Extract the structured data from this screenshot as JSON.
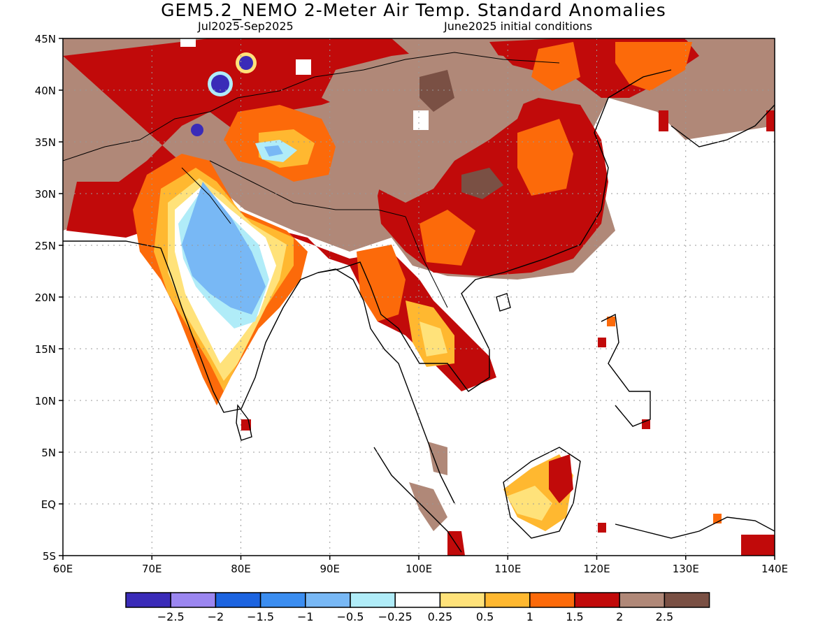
{
  "header": {
    "title": "GEM5.2_NEMO 2-Meter Air Temp. Standard Anomalies",
    "period": "Jul2025-Sep2025",
    "init": "June2025 initial conditions"
  },
  "map": {
    "lon_ticks": [
      "60E",
      "70E",
      "80E",
      "90E",
      "100E",
      "110E",
      "120E",
      "130E",
      "140E"
    ],
    "lat_ticks": [
      "45N",
      "40N",
      "35N",
      "30N",
      "25N",
      "20N",
      "15N",
      "10N",
      "5N",
      "EQ",
      "5S"
    ],
    "lon_range": [
      60,
      140
    ],
    "lat_range": [
      -5,
      45
    ],
    "grid": "dotted"
  },
  "colorbar": {
    "colors": [
      "#3a2bb8",
      "#9b86f0",
      "#1c64e0",
      "#3b8df0",
      "#78b8f5",
      "#b0ecf8",
      "#ffffff",
      "#ffe27a",
      "#ffb830",
      "#fc6a0a",
      "#c10a0a",
      "#b08878",
      "#7a5044"
    ],
    "labels": [
      "-2.5",
      "-2",
      "-1.5",
      "-1",
      "-0.5",
      "-0.25",
      "0.25",
      "0.5",
      "1",
      "1.5",
      "2",
      "2.5"
    ]
  }
}
